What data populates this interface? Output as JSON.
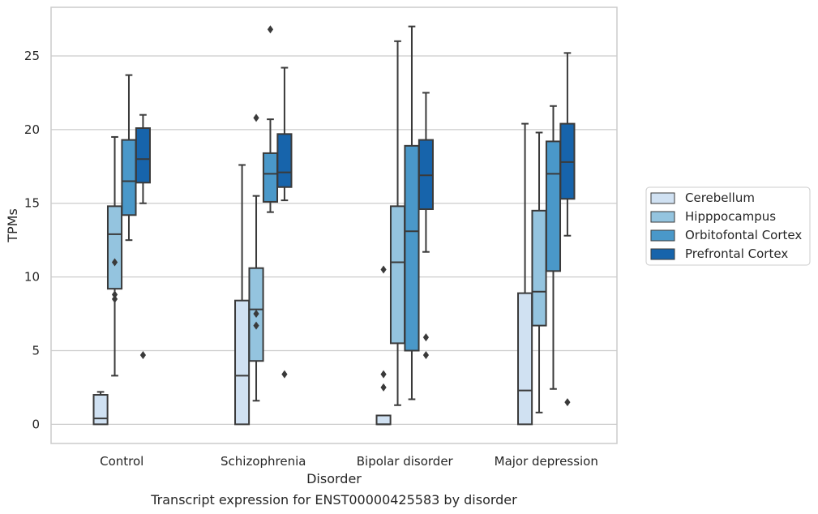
{
  "chart_data": {
    "type": "box",
    "title": "",
    "caption": "Transcript expression for ENST00000425583 by disorder",
    "xlabel": "Disorder",
    "ylabel": "TPMs",
    "ylim": [
      -1.3,
      28.3
    ],
    "yticks": [
      0,
      5,
      10,
      15,
      20,
      25
    ],
    "grid": "horizontal",
    "legend_position": "right",
    "categories": [
      "Control",
      "Schizophrenia",
      "Bipolar disorder",
      "Major depression"
    ],
    "series": [
      {
        "name": "Cerebellum",
        "color": "#d0e1f2",
        "boxes": [
          {
            "min": 0,
            "q1": 0,
            "median": 0.4,
            "q3": 2.0,
            "max": 2.2,
            "outliers": []
          },
          {
            "min": 0,
            "q1": 0,
            "median": 3.3,
            "q3": 8.4,
            "max": 17.6,
            "outliers": []
          },
          {
            "min": 0,
            "q1": 0,
            "median": 0,
            "q3": 0.6,
            "max": 0.6,
            "outliers": [
              10.5,
              3.4,
              2.5
            ]
          },
          {
            "min": 0,
            "q1": 0,
            "median": 2.3,
            "q3": 8.9,
            "max": 20.4,
            "outliers": []
          }
        ]
      },
      {
        "name": "Hipppocampus",
        "color": "#94c4df",
        "boxes": [
          {
            "min": 3.3,
            "q1": 9.2,
            "median": 12.9,
            "q3": 14.8,
            "max": 19.5,
            "outliers": [
              11.0,
              8.8,
              8.5
            ]
          },
          {
            "min": 1.6,
            "q1": 4.3,
            "median": 7.8,
            "q3": 10.6,
            "max": 15.5,
            "outliers": [
              20.8,
              7.5,
              6.7
            ]
          },
          {
            "min": 1.3,
            "q1": 5.5,
            "median": 11.0,
            "q3": 14.8,
            "max": 26.0,
            "outliers": []
          },
          {
            "min": 0.8,
            "q1": 6.7,
            "median": 9.0,
            "q3": 14.5,
            "max": 19.8,
            "outliers": []
          }
        ]
      },
      {
        "name": "Orbitofontal Cortex",
        "color": "#4a98c9",
        "boxes": [
          {
            "min": 12.5,
            "q1": 14.2,
            "median": 16.5,
            "q3": 19.3,
            "max": 23.7,
            "outliers": []
          },
          {
            "min": 14.4,
            "q1": 15.1,
            "median": 17.0,
            "q3": 18.4,
            "max": 20.7,
            "outliers": [
              26.8
            ]
          },
          {
            "min": 1.7,
            "q1": 5.0,
            "median": 13.1,
            "q3": 18.9,
            "max": 27.0,
            "outliers": []
          },
          {
            "min": 2.4,
            "q1": 10.4,
            "median": 17.0,
            "q3": 19.2,
            "max": 21.6,
            "outliers": []
          }
        ]
      },
      {
        "name": "Prefrontal Cortex",
        "color": "#1764ab",
        "boxes": [
          {
            "min": 15.0,
            "q1": 16.4,
            "median": 18.0,
            "q3": 20.1,
            "max": 21.0,
            "outliers": [
              4.7
            ]
          },
          {
            "min": 15.2,
            "q1": 16.1,
            "median": 17.1,
            "q3": 19.7,
            "max": 24.2,
            "outliers": [
              3.4
            ]
          },
          {
            "min": 11.7,
            "q1": 14.6,
            "median": 16.9,
            "q3": 19.3,
            "max": 22.5,
            "outliers": [
              5.9,
              4.7
            ]
          },
          {
            "min": 12.8,
            "q1": 15.3,
            "median": 17.8,
            "q3": 20.4,
            "max": 25.2,
            "outliers": [
              1.5
            ]
          }
        ]
      }
    ]
  }
}
